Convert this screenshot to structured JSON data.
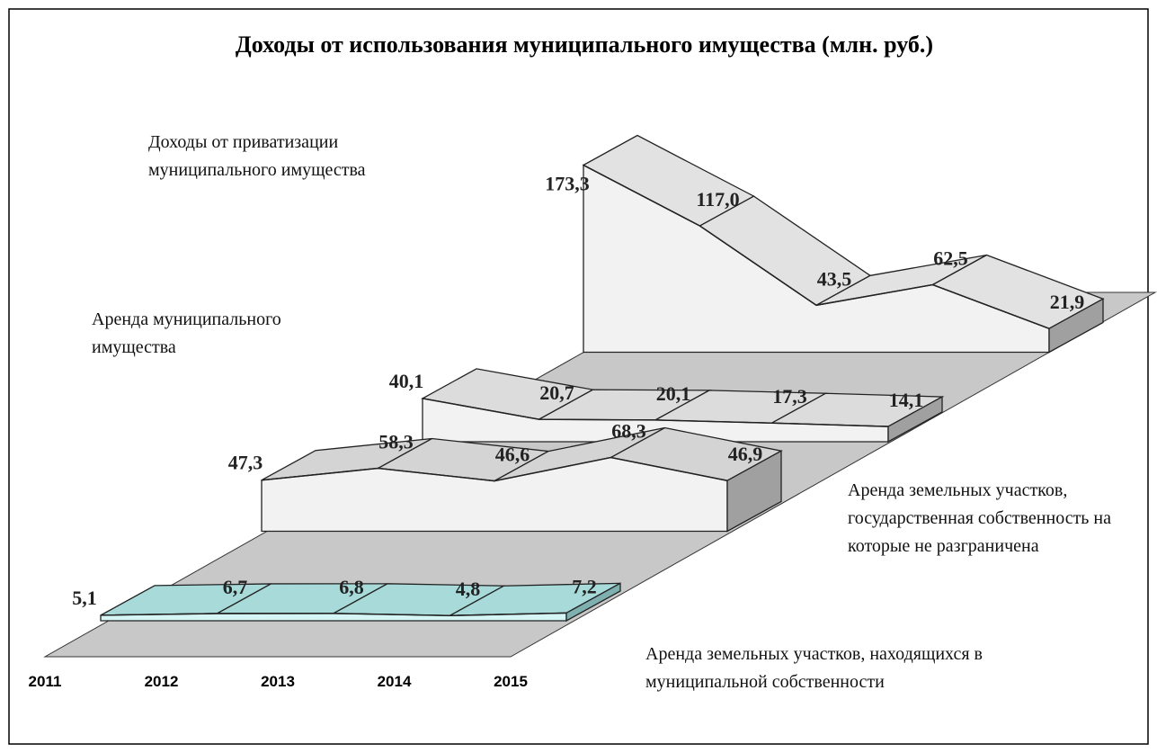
{
  "chart_data": {
    "type": "area3d",
    "title": "Доходы от использования муниципального имущества (млн. руб.)",
    "categories": [
      "2011",
      "2012",
      "2013",
      "2014",
      "2015"
    ],
    "series": [
      {
        "name": "Аренда земельных участков, находящихся в муниципальной собственности",
        "color": "#a8dada",
        "values": [
          5.1,
          6.7,
          6.8,
          4.8,
          7.2
        ],
        "value_labels": [
          "5,1",
          "6,7",
          "6,8",
          "4,8",
          "7,2"
        ]
      },
      {
        "name": "Аренда земельных участков, государственная собственность на которые не разграничена",
        "color": "#d4d4d4",
        "values": [
          47.3,
          58.3,
          46.6,
          68.3,
          46.9
        ],
        "value_labels": [
          "47,3",
          "58,3",
          "46,6",
          "68,3",
          "46,9"
        ]
      },
      {
        "name": "Аренда муниципального имущества",
        "color": "#dcdcdc",
        "values": [
          40.1,
          20.7,
          20.1,
          17.3,
          14.1
        ],
        "value_labels": [
          "40,1",
          "20,7",
          "20,1",
          "17,3",
          "14,1"
        ]
      },
      {
        "name": "Доходы от приватизации муниципального имущества",
        "color": "#e2e2e2",
        "values": [
          173.3,
          117.0,
          43.5,
          62.5,
          21.9
        ],
        "value_labels": [
          "173,3",
          "117,0",
          "43,5",
          "62,5",
          "21,9"
        ]
      }
    ]
  }
}
